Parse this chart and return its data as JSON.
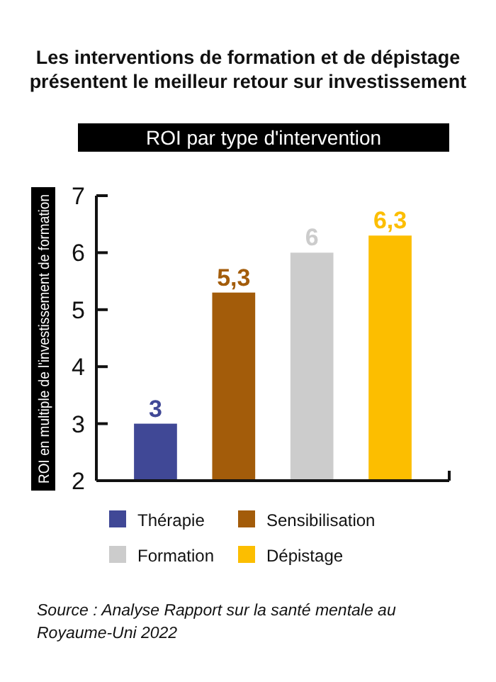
{
  "chart_data": {
    "type": "bar",
    "title": "Les interventions de formation et de dépistage présentent le meilleur retour sur investissement",
    "subtitle": "ROI par type d'intervention",
    "ylabel": "ROI en multiple de l'investissement de formation",
    "categories": [
      null,
      null,
      null,
      null
    ],
    "stacked": true,
    "series": [
      {
        "name": "Thérapie",
        "color": "#404896",
        "values": [
          3,
          null,
          null,
          null
        ],
        "value_labels": [
          "3",
          null,
          null,
          null
        ]
      },
      {
        "name": "Sensibilisation",
        "color": "#a35c0a",
        "values": [
          null,
          5.3,
          null,
          null
        ],
        "value_labels": [
          null,
          "5,3",
          null,
          null
        ]
      },
      {
        "name": "Formation",
        "color": "#cccccc",
        "values": [
          null,
          null,
          6,
          null
        ],
        "value_labels": [
          null,
          null,
          "6",
          null
        ]
      },
      {
        "name": "Dépistage",
        "color": "#fcbe00",
        "values": [
          null,
          null,
          null,
          6.3
        ],
        "value_labels": [
          null,
          null,
          null,
          "6,3"
        ]
      }
    ],
    "ylim": [
      2,
      7
    ],
    "yticks": [
      2,
      3,
      4,
      5,
      6,
      7
    ],
    "tick_labels": "y",
    "legend": "bottom",
    "annotations": [
      "Source : Analyse Rapport sur la santé mentale au Royaume-Uni 2022"
    ]
  }
}
